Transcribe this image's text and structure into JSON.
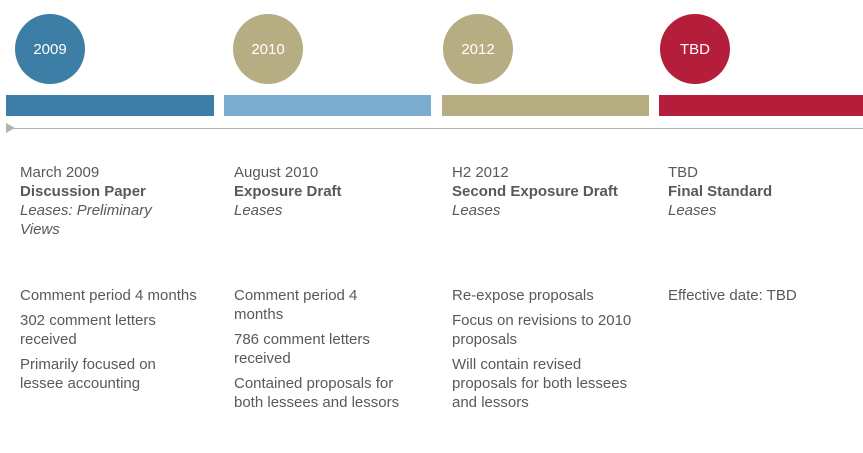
{
  "timeline": [
    {
      "year": "2009",
      "circle_color": "#3c7ea5",
      "bar_color": "#3c7ea5",
      "date": "March 2009",
      "title": "Discussion Paper",
      "subtitle": "Leases: Preliminary Views",
      "notes": [
        "Comment period 4 months",
        "302 comment letters received",
        "Primarily focused on lessee accounting"
      ]
    },
    {
      "year": "2010",
      "circle_color": "#b6ad83",
      "bar_color": "#7aaccd",
      "date": "August 2010",
      "title": "Exposure Draft",
      "subtitle": "Leases",
      "notes": [
        "Comment period 4 months",
        "786 comment letters received",
        "Contained proposals for both lessees and lessors"
      ]
    },
    {
      "year": "2012",
      "circle_color": "#b6ad83",
      "bar_color": "#b6ad83",
      "date": "H2 2012",
      "title": "Second Exposure Draft",
      "subtitle": "Leases",
      "notes": [
        "Re-expose proposals",
        "Focus on revisions to 2010 proposals",
        "Will contain revised proposals for both lessees and lessors"
      ]
    },
    {
      "year": "TBD",
      "circle_color": "#b51e3b",
      "bar_color": "#b51e3b",
      "date": "TBD",
      "title": "Final Standard",
      "subtitle": "Leases",
      "notes": [
        "Effective date: TBD"
      ]
    }
  ]
}
